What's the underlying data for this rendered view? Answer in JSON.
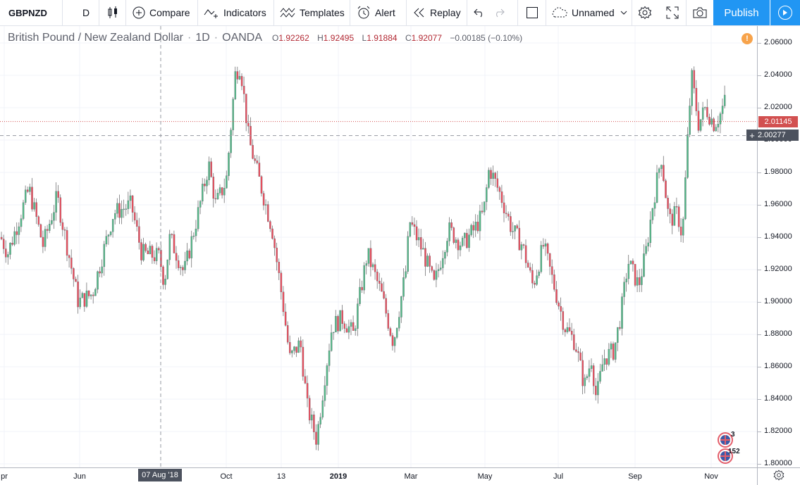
{
  "toolbar": {
    "symbol": "GBPNZD",
    "interval": "D",
    "compare": "Compare",
    "indicators": "Indicators",
    "templates": "Templates",
    "alert": "Alert",
    "replay": "Replay",
    "layout_name": "Unnamed",
    "publish": "Publish",
    "icons": [
      "candles-icon",
      "plus-circle-icon",
      "indicators-icon",
      "templates-icon",
      "alarm-clock-icon",
      "replay-icon",
      "undo-icon",
      "redo-icon",
      "square-icon",
      "cloud-icon",
      "chevron-down-icon",
      "gear-icon",
      "fullscreen-icon",
      "camera-icon",
      "play-icon"
    ]
  },
  "legend": {
    "title": "British Pound / New Zealand Dollar",
    "interval": "1D",
    "source": "OANDA",
    "o_label": "O",
    "o": "1.92262",
    "h_label": "H",
    "h": "1.92495",
    "l_label": "L",
    "l": "1.91884",
    "c_label": "C",
    "c": "1.92077",
    "change": "−0.00185 (−0.10%)"
  },
  "price_axis": {
    "ticks": [
      "2.06000",
      "2.04000",
      "2.02000",
      "2.00000",
      "1.98000",
      "1.96000",
      "1.94000",
      "1.92000",
      "1.90000",
      "1.88000",
      "1.86000",
      "1.84000",
      "1.82000",
      "1.80000"
    ],
    "last_price": "2.01145",
    "crosshair_price": "2.00277",
    "alert_badge": "!"
  },
  "time_axis": {
    "ticks": [
      "Apr",
      "Jun",
      "Oct",
      "13",
      "2019",
      "Mar",
      "May",
      "Jul",
      "Sep",
      "Nov"
    ],
    "first_visible": "pr",
    "crosshair_date": "07 Aug '18"
  },
  "events": {
    "nz_count": "3",
    "uk_count": "152"
  },
  "colors": {
    "up": "#53b987",
    "down": "#eb4d5c",
    "wick": "#737375",
    "grid": "#f0f3fa",
    "last_price": "#d25050",
    "accent": "#2196f3"
  },
  "chart_data": {
    "type": "candlestick",
    "symbol": "GBPNZD",
    "interval": "1D",
    "ylim": [
      1.8,
      2.065
    ],
    "path": [
      [
        0,
        1.94
      ],
      [
        10,
        1.93
      ],
      [
        25,
        1.95
      ],
      [
        40,
        1.97
      ],
      [
        60,
        1.935
      ],
      [
        80,
        1.965
      ],
      [
        110,
        1.9
      ],
      [
        130,
        1.905
      ],
      [
        160,
        1.955
      ],
      [
        185,
        1.96
      ],
      [
        200,
        1.93
      ],
      [
        225,
        1.928
      ],
      [
        232,
        1.912
      ],
      [
        240,
        1.94
      ],
      [
        260,
        1.918
      ],
      [
        280,
        1.955
      ],
      [
        295,
        1.985
      ],
      [
        305,
        1.96
      ],
      [
        320,
        1.975
      ],
      [
        333,
        2.042
      ],
      [
        340,
        2.046
      ],
      [
        352,
        2.0
      ],
      [
        370,
        1.97
      ],
      [
        385,
        1.945
      ],
      [
        400,
        1.9
      ],
      [
        410,
        1.865
      ],
      [
        425,
        1.875
      ],
      [
        435,
        1.835
      ],
      [
        448,
        1.815
      ],
      [
        460,
        1.855
      ],
      [
        470,
        1.885
      ],
      [
        485,
        1.89
      ],
      [
        500,
        1.88
      ],
      [
        520,
        1.93
      ],
      [
        540,
        1.905
      ],
      [
        557,
        1.875
      ],
      [
        575,
        1.92
      ],
      [
        580,
        1.95
      ],
      [
        600,
        1.93
      ],
      [
        615,
        1.91
      ],
      [
        635,
        1.945
      ],
      [
        655,
        1.935
      ],
      [
        672,
        1.945
      ],
      [
        685,
        1.955
      ],
      [
        693,
        1.983
      ],
      [
        710,
        1.965
      ],
      [
        725,
        1.945
      ],
      [
        740,
        1.935
      ],
      [
        755,
        1.91
      ],
      [
        770,
        1.935
      ],
      [
        785,
        1.91
      ],
      [
        800,
        1.885
      ],
      [
        815,
        1.875
      ],
      [
        828,
        1.848
      ],
      [
        838,
        1.865
      ],
      [
        845,
        1.84
      ],
      [
        855,
        1.865
      ],
      [
        870,
        1.87
      ],
      [
        880,
        1.893
      ],
      [
        890,
        1.925
      ],
      [
        905,
        1.91
      ],
      [
        915,
        1.93
      ],
      [
        925,
        1.96
      ],
      [
        937,
        1.99
      ],
      [
        948,
        1.95
      ],
      [
        960,
        1.955
      ],
      [
        967,
        1.94
      ],
      [
        975,
        2.005
      ],
      [
        980,
        2.04
      ],
      [
        990,
        2.01
      ],
      [
        1000,
        2.02
      ],
      [
        1012,
        2.01
      ],
      [
        1020,
        2.015
      ],
      [
        1028,
        2.025
      ],
      [
        1030,
        2.011
      ]
    ]
  }
}
